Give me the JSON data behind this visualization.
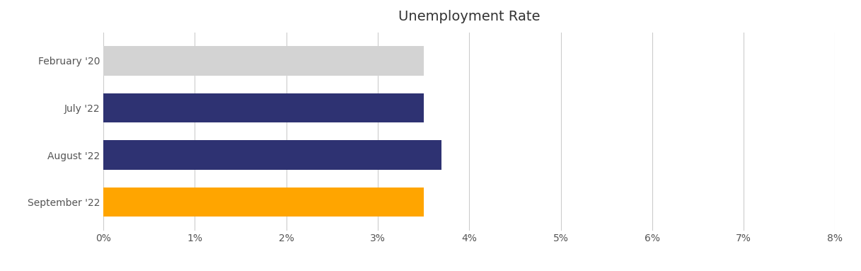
{
  "title": "Unemployment Rate",
  "title_color": "#333333",
  "categories": [
    "February '20",
    "July '22",
    "August '22",
    "September '22"
  ],
  "values": [
    3.5,
    3.5,
    3.7,
    3.5
  ],
  "bar_colors": [
    "#D3D3D3",
    "#2E3272",
    "#2E3272",
    "#FFA500"
  ],
  "xlim": [
    0,
    0.08
  ],
  "xticks": [
    0,
    0.01,
    0.02,
    0.03,
    0.04,
    0.05,
    0.06,
    0.07,
    0.08
  ],
  "xtick_labels": [
    "0%",
    "1%",
    "2%",
    "3%",
    "4%",
    "5%",
    "6%",
    "7%",
    "8%"
  ],
  "background_color": "#FFFFFF",
  "grid_color": "#CCCCCC",
  "tick_label_color": "#555555",
  "title_fontsize": 14,
  "tick_fontsize": 10,
  "bar_height": 0.62
}
